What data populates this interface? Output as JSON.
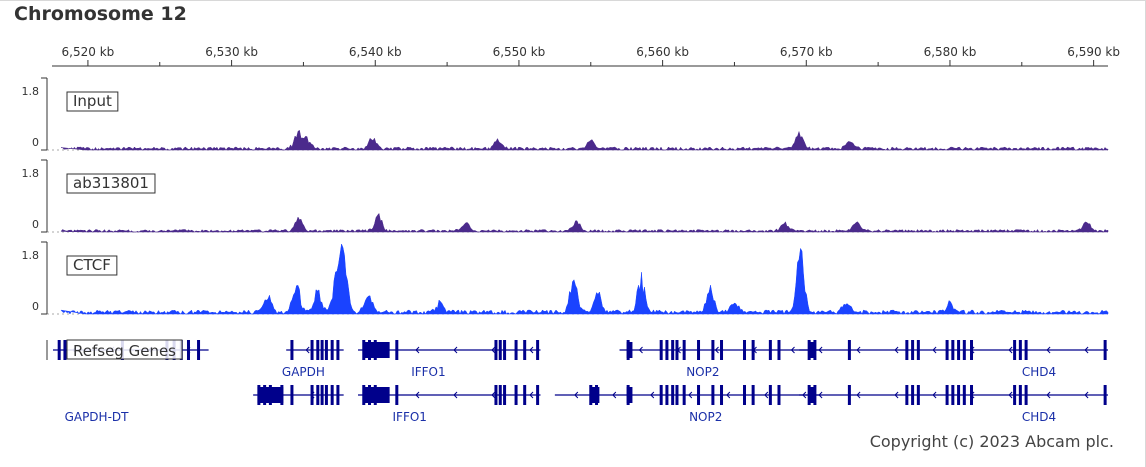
{
  "title": "Chromosome 12",
  "copyright": "Copyright (c) 2023 Abcam plc.",
  "colors": {
    "input": "#4b2a8c",
    "ab313801": "#4b2a8c",
    "ctcf": "#1a43ff",
    "genes": "#00008b",
    "axis": "#333333"
  },
  "chart_data": {
    "type": "area",
    "xlabel": "",
    "x_range_kb": [
      6517.5,
      6591
    ],
    "ticks": [
      {
        "value": 6520,
        "label": "6,520 kb"
      },
      {
        "value": 6530,
        "label": "6,530 kb"
      },
      {
        "value": 6540,
        "label": "6,540 kb"
      },
      {
        "value": 6550,
        "label": "6,550 kb"
      },
      {
        "value": 6560,
        "label": "6,560 kb"
      },
      {
        "value": 6570,
        "label": "6,570 kb"
      },
      {
        "value": 6580,
        "label": "6,580 kb"
      },
      {
        "value": 6590,
        "label": "6,590 kb"
      }
    ],
    "tracks": [
      {
        "name": "Input",
        "ymax_label": "1.8",
        "ymin_label": "0",
        "ylim": [
          0,
          1.8
        ],
        "peaks": [
          [
            6534.6,
            0.45
          ],
          [
            6535.2,
            0.3
          ],
          [
            6539.8,
            0.3
          ],
          [
            6548.5,
            0.25
          ],
          [
            6555.0,
            0.28
          ],
          [
            6569.5,
            0.45
          ],
          [
            6573.0,
            0.2
          ]
        ]
      },
      {
        "name": "ab313801",
        "ymax_label": "1.8",
        "ymin_label": "0",
        "ylim": [
          0,
          1.8
        ],
        "peaks": [
          [
            6534.7,
            0.35
          ],
          [
            6540.2,
            0.45
          ],
          [
            6546.3,
            0.25
          ],
          [
            6554.0,
            0.25
          ],
          [
            6568.5,
            0.25
          ],
          [
            6573.5,
            0.25
          ],
          [
            6589.5,
            0.25
          ]
        ]
      },
      {
        "name": "CTCF",
        "ymax_label": "1.8",
        "ymin_label": "0",
        "ylim": [
          0,
          1.8
        ],
        "peaks": [
          [
            6532.5,
            0.5
          ],
          [
            6534.5,
            0.8
          ],
          [
            6536.0,
            0.6
          ],
          [
            6537.8,
            1.6
          ],
          [
            6537.3,
            1.0
          ],
          [
            6539.5,
            0.55
          ],
          [
            6544.5,
            0.3
          ],
          [
            6553.8,
            0.95
          ],
          [
            6555.5,
            0.5
          ],
          [
            6558.5,
            0.95
          ],
          [
            6563.3,
            0.65
          ],
          [
            6565.0,
            0.3
          ],
          [
            6569.6,
            1.8
          ],
          [
            6572.8,
            0.3
          ],
          [
            6580.0,
            0.25
          ]
        ]
      }
    ],
    "genes_track_label": "Refseg Genes",
    "gene_labels": [
      {
        "name": "GAPDH",
        "x": 6535.0,
        "row": 1
      },
      {
        "name": "IFFO1",
        "x": 6543.7,
        "row": 1
      },
      {
        "name": "NOP2",
        "x": 6562.8,
        "row": 1
      },
      {
        "name": "CHD4",
        "x": 6586.2,
        "row": 1
      },
      {
        "name": "GAPDH-DT",
        "x": 6520.6,
        "row": 2
      },
      {
        "name": "IFFO1",
        "x": 6542.4,
        "row": 2
      },
      {
        "name": "NOP2",
        "x": 6563.0,
        "row": 2
      },
      {
        "name": "CHD4",
        "x": 6586.2,
        "row": 2
      }
    ],
    "genes": [
      {
        "row": 1,
        "start": 6517.5,
        "end": 6528.4,
        "exons": [
          6518.0,
          6518.4,
          6522.4,
          6525.5,
          6526.0,
          6526.5,
          6527.0,
          6527.7
        ]
      },
      {
        "row": 1,
        "start": 6533.8,
        "end": 6537.8,
        "exons": [
          6534.2,
          6535.6,
          6536.0,
          6536.3,
          6536.6,
          6537.0,
          6537.4
        ]
      },
      {
        "row": 1,
        "start": 6538.8,
        "end": 6551.5,
        "exons": [
          6539.2,
          6539.6,
          6540.0,
          6541.5,
          6548.4,
          6548.7,
          6549.0,
          6549.8,
          6550.4,
          6551.3
        ]
      },
      {
        "row": 1,
        "start": 6557.0,
        "end": 6571.0,
        "exons": [
          6557.6,
          6559.9,
          6560.3,
          6560.7,
          6561.0,
          6561.5,
          6562.5,
          6563.5,
          6564.1,
          6565.7,
          6566.3,
          6567.5,
          6568.1
        ]
      },
      {
        "row": 1,
        "start": 6569.5,
        "end": 6591.0,
        "exons": [
          6570.2,
          6570.6,
          6573.0,
          6577.0,
          6577.4,
          6577.8,
          6579.8,
          6580.2,
          6580.6,
          6581.0,
          6581.5,
          6584.5,
          6584.9,
          6585.3,
          6590.8
        ]
      },
      {
        "row": 2,
        "start": 6531.5,
        "end": 6537.8,
        "exons": [
          6531.9,
          6532.3,
          6532.7,
          6533.5,
          6534.2,
          6535.6,
          6536.0,
          6536.3,
          6536.6,
          6537.0,
          6537.4
        ]
      },
      {
        "row": 2,
        "start": 6538.8,
        "end": 6551.5,
        "exons": [
          6539.2,
          6539.6,
          6540.0,
          6541.5,
          6548.4,
          6548.7,
          6549.0,
          6549.8,
          6550.4,
          6551.3
        ]
      },
      {
        "row": 2,
        "start": 6552.5,
        "end": 6571.0,
        "exons": [
          6555.0,
          6555.4,
          6557.6,
          6559.9,
          6560.3,
          6560.7,
          6561.0,
          6561.5,
          6562.5,
          6563.5,
          6564.1,
          6565.7,
          6566.3,
          6567.5,
          6568.1
        ]
      },
      {
        "row": 2,
        "start": 6569.5,
        "end": 6591.0,
        "exons": [
          6570.2,
          6570.6,
          6573.0,
          6577.0,
          6577.4,
          6577.8,
          6579.8,
          6580.2,
          6580.6,
          6581.0,
          6581.5,
          6584.5,
          6584.9,
          6585.3,
          6590.8
        ]
      }
    ]
  }
}
